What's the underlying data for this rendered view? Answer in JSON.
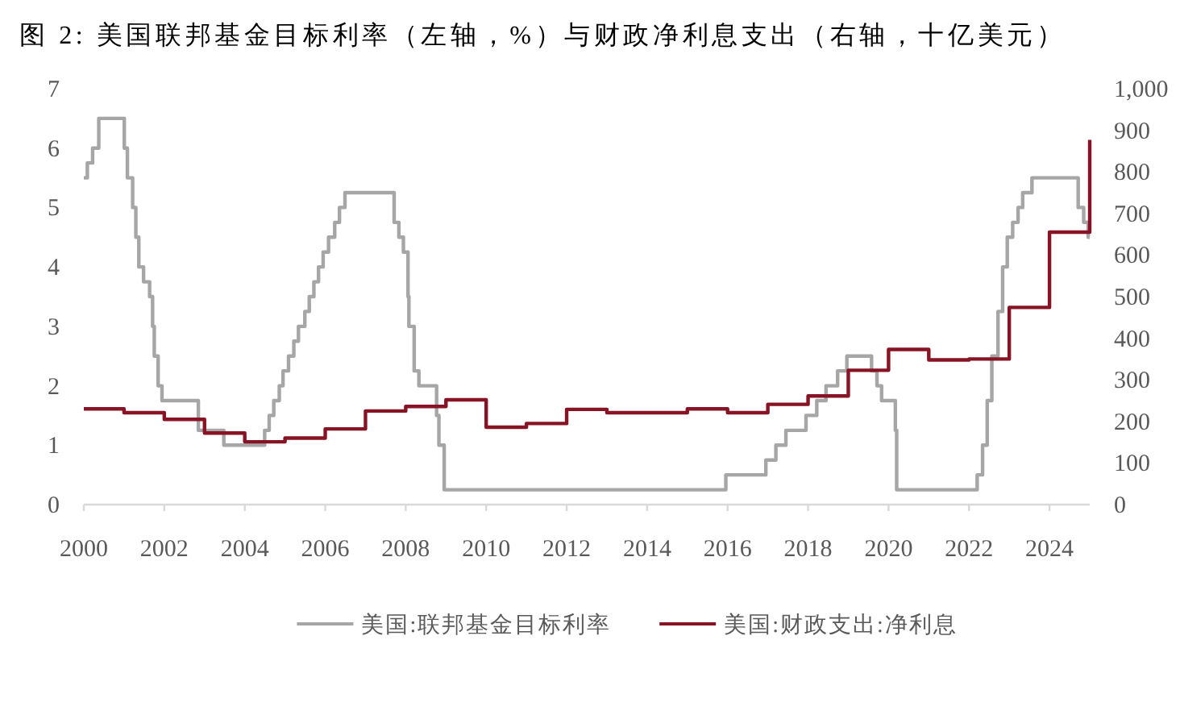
{
  "chart_data": {
    "type": "step",
    "title": "图 2: 美国联邦基金目标利率（左轴，%）与财政净利息支出（右轴，十亿美元）",
    "xlim": [
      "2000-01-01",
      "2025-01-01"
    ],
    "xticks": [
      "2000",
      "2002",
      "2004",
      "2006",
      "2008",
      "2010",
      "2012",
      "2014",
      "2016",
      "2018",
      "2020",
      "2022",
      "2024"
    ],
    "ylim": [
      0,
      7
    ],
    "yticks": [
      0,
      1,
      2,
      3,
      4,
      5,
      6,
      7
    ],
    "y2lim": [
      0,
      1000
    ],
    "y2ticks": [
      0,
      100,
      200,
      300,
      400,
      500,
      600,
      700,
      800,
      900,
      {
        "value": 1000,
        "label": "1,000"
      }
    ],
    "legend": "bottom",
    "series": [
      {
        "name": "美国:联邦基金目标利率",
        "color": "#a6a6a6",
        "x": [
          "2000-01-01",
          "2000-02-02",
          "2000-03-21",
          "2000-05-16",
          "2001-01-03",
          "2001-01-31",
          "2001-03-20",
          "2001-04-18",
          "2001-05-15",
          "2001-06-27",
          "2001-08-21",
          "2001-09-17",
          "2001-10-02",
          "2001-11-06",
          "2001-12-11",
          "2002-11-06",
          "2003-06-25",
          "2004-06-30",
          "2004-08-10",
          "2004-09-21",
          "2004-11-10",
          "2004-12-14",
          "2005-02-02",
          "2005-03-22",
          "2005-05-03",
          "2005-06-30",
          "2005-08-09",
          "2005-09-20",
          "2005-11-01",
          "2005-12-13",
          "2006-01-31",
          "2006-03-28",
          "2006-05-10",
          "2006-06-29",
          "2007-09-18",
          "2007-10-31",
          "2007-12-11",
          "2008-01-22",
          "2008-01-30",
          "2008-03-18",
          "2008-04-30",
          "2008-10-08",
          "2008-10-29",
          "2008-12-16",
          "2015-12-16",
          "2016-12-14",
          "2017-03-15",
          "2017-06-14",
          "2017-12-13",
          "2018-03-21",
          "2018-06-13",
          "2018-09-26",
          "2018-12-19",
          "2019-07-31",
          "2019-09-18",
          "2019-10-30",
          "2020-03-03",
          "2020-03-15",
          "2022-03-16",
          "2022-05-04",
          "2022-06-15",
          "2022-07-27",
          "2022-09-21",
          "2022-11-02",
          "2022-12-14",
          "2023-02-01",
          "2023-03-22",
          "2023-05-03",
          "2023-07-26",
          "2024-09-18",
          "2024-11-07",
          "2024-12-18",
          "2024-12-31"
        ],
        "values": [
          5.5,
          5.75,
          6.0,
          6.5,
          6.0,
          5.5,
          5.0,
          4.5,
          4.0,
          3.75,
          3.5,
          3.0,
          2.5,
          2.0,
          1.75,
          1.25,
          1.0,
          1.25,
          1.5,
          1.75,
          2.0,
          2.25,
          2.5,
          2.75,
          3.0,
          3.25,
          3.5,
          3.75,
          4.0,
          4.25,
          4.5,
          4.75,
          5.0,
          5.25,
          4.75,
          4.5,
          4.25,
          3.5,
          3.0,
          2.25,
          2.0,
          1.5,
          1.0,
          0.25,
          0.5,
          0.75,
          1.0,
          1.25,
          1.5,
          1.75,
          2.0,
          2.25,
          2.5,
          2.25,
          2.0,
          1.75,
          1.25,
          0.25,
          0.5,
          1.0,
          1.75,
          2.5,
          3.25,
          4.0,
          4.5,
          4.75,
          5.0,
          5.25,
          5.5,
          5.0,
          4.75,
          4.5,
          4.5
        ]
      },
      {
        "name": "美国:财政支出:净利息",
        "color": "#861424",
        "axis": "y2",
        "x": [
          "2000",
          "2001",
          "2002",
          "2003",
          "2004",
          "2005",
          "2006",
          "2007",
          "2008",
          "2009",
          "2010",
          "2011",
          "2012",
          "2013",
          "2014",
          "2015",
          "2016",
          "2017",
          "2018",
          "2019",
          "2020",
          "2021",
          "2022",
          "2023",
          "2024",
          "2025"
        ],
        "values": [
          230,
          221,
          205,
          172,
          151,
          160,
          182,
          225,
          236,
          252,
          186,
          195,
          229,
          221,
          221,
          230,
          221,
          241,
          261,
          323,
          373,
          348,
          350,
          474,
          655,
          877
        ]
      }
    ]
  }
}
